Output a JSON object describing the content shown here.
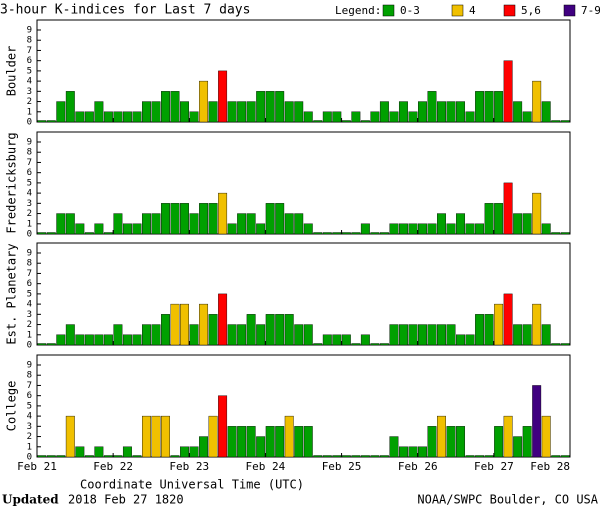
{
  "chart_data": {
    "type": "bar",
    "title": "3-hour K-indices for Last 7 days",
    "legend_title": "Legend:",
    "legend": [
      {
        "label": "0-3",
        "color": "#00a000",
        "min": 0,
        "max": 3
      },
      {
        "label": "4",
        "color": "#f0c000",
        "min": 4,
        "max": 4
      },
      {
        "label": "5,6",
        "color": "#ff0000",
        "min": 5,
        "max": 6
      },
      {
        "label": "7-9",
        "color": "#400080",
        "min": 7,
        "max": 9
      }
    ],
    "xtick_labels": [
      "Feb 21",
      "Feb 22",
      "Feb 23",
      "Feb 24",
      "Feb 25",
      "Feb 26",
      "Feb 27",
      "Feb 28"
    ],
    "xlabel": "Coordinate Universal Time (UTC)",
    "ylim": [
      0,
      9
    ],
    "yticks": [
      0,
      1,
      2,
      3,
      4,
      5,
      6,
      7,
      8,
      9
    ],
    "panels": [
      {
        "name": "Boulder",
        "values": [
          0,
          0,
          2,
          3,
          1,
          1,
          2,
          1,
          1,
          1,
          1,
          2,
          2,
          3,
          3,
          2,
          1,
          4,
          2,
          5,
          2,
          2,
          2,
          3,
          3,
          3,
          2,
          2,
          1,
          0,
          1,
          1,
          0,
          1,
          0,
          1,
          2,
          1,
          2,
          1,
          2,
          3,
          2,
          2,
          2,
          1,
          3,
          3,
          3,
          6,
          2,
          1,
          4,
          2,
          0,
          0
        ]
      },
      {
        "name": "Fredericksburg",
        "values": [
          0,
          0,
          2,
          2,
          1,
          0,
          1,
          0,
          2,
          1,
          1,
          2,
          2,
          3,
          3,
          3,
          2,
          3,
          3,
          4,
          1,
          2,
          2,
          1,
          3,
          3,
          2,
          2,
          1,
          0,
          0,
          0,
          0,
          0,
          1,
          0,
          0,
          1,
          1,
          1,
          1,
          1,
          2,
          1,
          2,
          1,
          1,
          3,
          3,
          5,
          2,
          2,
          4,
          1,
          0,
          0
        ]
      },
      {
        "name": "Est. Planetary",
        "values": [
          0,
          0,
          1,
          2,
          1,
          1,
          1,
          1,
          2,
          1,
          1,
          2,
          2,
          3,
          4,
          4,
          2,
          4,
          3,
          5,
          2,
          2,
          3,
          2,
          3,
          3,
          3,
          2,
          2,
          0,
          1,
          1,
          1,
          0,
          1,
          0,
          0,
          2,
          2,
          2,
          2,
          2,
          2,
          2,
          1,
          1,
          3,
          3,
          4,
          5,
          2,
          2,
          4,
          2,
          0,
          0
        ]
      },
      {
        "name": "College",
        "values": [
          0,
          0,
          0,
          4,
          1,
          0,
          1,
          0,
          0,
          1,
          0,
          4,
          4,
          4,
          0,
          1,
          1,
          2,
          4,
          6,
          3,
          3,
          3,
          2,
          3,
          3,
          4,
          3,
          3,
          0,
          0,
          0,
          0,
          0,
          0,
          0,
          0,
          2,
          1,
          1,
          1,
          3,
          4,
          3,
          3,
          0,
          0,
          0,
          3,
          4,
          2,
          3,
          7,
          4,
          0,
          0
        ]
      }
    ]
  },
  "footer": {
    "updated_label": "Updated",
    "updated": "2018 Feb 27 1820",
    "credit": "NOAA/SWPC Boulder, CO USA"
  }
}
